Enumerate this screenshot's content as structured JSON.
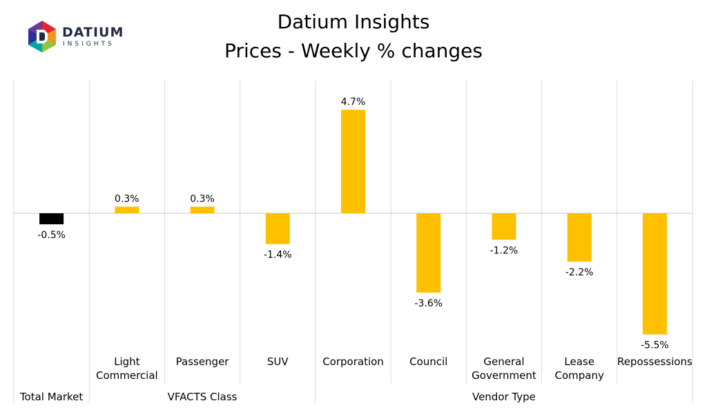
{
  "brand": {
    "name": "DATIUM",
    "sub": "INSIGHTS",
    "colors": [
      "#e9232b",
      "#f7941d",
      "#8dc63f",
      "#00a6a6",
      "#2e3192",
      "#6a3c96",
      "#1f2a44"
    ]
  },
  "chart_data": {
    "type": "bar",
    "title": "Datium Insights",
    "subtitle": "Prices - Weekly % changes",
    "categories": [
      "",
      "Light\nCommercial",
      "Passenger",
      "SUV",
      "Corporation",
      "Council",
      "General\nGovernment",
      "Lease\nCompany",
      "Repossessions"
    ],
    "values": [
      -0.5,
      0.3,
      0.3,
      -1.4,
      4.7,
      -3.6,
      -1.2,
      -2.2,
      -5.5
    ],
    "data_labels": [
      "-0.5%",
      "0.3%",
      "0.3%",
      "-1.4%",
      "4.7%",
      "-3.6%",
      "-1.2%",
      "-2.2%",
      "-5.5%"
    ],
    "groups": [
      {
        "label": "Total Market",
        "count": 1
      },
      {
        "label": "VFACTS Class",
        "count": 3
      },
      {
        "label": "Vendor Type",
        "count": 5
      }
    ],
    "colors": [
      "#000000",
      "#ffc000",
      "#ffc000",
      "#ffc000",
      "#ffc000",
      "#ffc000",
      "#ffc000",
      "#ffc000",
      "#ffc000"
    ],
    "ylim": [
      -6.0,
      6.0
    ],
    "gridline_color": "#d9d9d9",
    "xlabel": "",
    "ylabel": ""
  }
}
